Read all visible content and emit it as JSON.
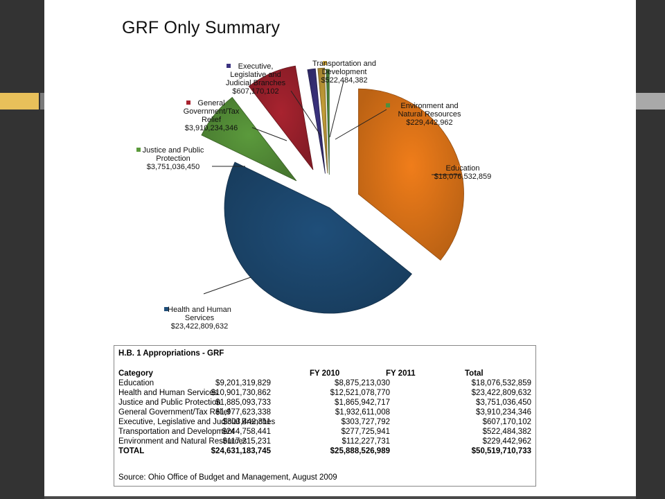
{
  "slide": {
    "title": "GRF Only Summary"
  },
  "chart_data": {
    "type": "pie",
    "title": "GRF Only Summary",
    "slices": [
      {
        "label": "Education",
        "value": 18076532859,
        "value_label": "$18,076,532,859",
        "color": "#f07d1a"
      },
      {
        "label": "Health and Human Services",
        "value": 23422809632,
        "value_label": "$23,422,809,632",
        "color": "#1f4e79"
      },
      {
        "label": "Justice and Public Protection",
        "value": 3751036450,
        "value_label": "$3,751,036,450",
        "color": "#5b9a3c"
      },
      {
        "label": "General Government/Tax Relief",
        "value": 3910234346,
        "value_label": "$3,910,234,346",
        "color": "#a8232f"
      },
      {
        "label": "Executive, Legislative and Judicial Branches",
        "value": 607170102,
        "value_label": "$607,170,102",
        "color": "#3b3380"
      },
      {
        "label": "Transportation and Development",
        "value": 522484382,
        "value_label": "$522,484,382",
        "color": "#c9a23a"
      },
      {
        "label": "Environment and Natural Resources",
        "value": 229442962,
        "value_label": "$229,442,962",
        "color": "#4f8f3e"
      }
    ],
    "label_lines": {
      "Education": [
        "Education",
        "$18,076,532,859"
      ],
      "Health and Human Services": [
        "Health and Human",
        "Services",
        "$23,422,809,632"
      ],
      "Justice and Public Protection": [
        "Justice and Public",
        "Protection",
        "$3,751,036,450"
      ],
      "General Government/Tax Relief": [
        "General",
        "Government/Tax",
        "Relief",
        "$3,910,234,346"
      ],
      "Executive, Legislative and Judicial Branches": [
        "Executive,",
        "Legislative and",
        "Judicial Branches",
        "$607,170,102"
      ],
      "Transportation and Development": [
        "Transportation and",
        "Development",
        "$522,484,382"
      ],
      "Environment and Natural Resources": [
        "Environment and",
        "Natural Resources",
        "$229,442,962"
      ]
    }
  },
  "table": {
    "title": "H.B. 1 Appropriations - GRF",
    "headers": [
      "Category",
      "FY 2010",
      "FY 2011",
      "Total"
    ],
    "rows": [
      [
        "Education",
        "$9,201,319,829",
        "$8,875,213,030",
        "$18,076,532,859"
      ],
      [
        "Health and Human Services",
        "$10,901,730,862",
        "$12,521,078,770",
        "$23,422,809,632"
      ],
      [
        "Justice and Public Protection",
        "$1,885,093,733",
        "$1,865,942,717",
        "$3,751,036,450"
      ],
      [
        "General Government/Tax Relief",
        "$1,977,623,338",
        "$1,932,611,008",
        "$3,910,234,346"
      ],
      [
        "Executive, Legislative and Judicial Branches",
        "$303,442,311",
        "$303,727,792",
        "$607,170,102"
      ],
      [
        "Transportation and Development",
        "$244,758,441",
        "$277,725,941",
        "$522,484,382"
      ],
      [
        "Environment and Natural Resources",
        "$117,215,231",
        "$112,227,731",
        "$229,442,962"
      ]
    ],
    "total": [
      "TOTAL",
      "$24,631,183,745",
      "$25,888,526,989",
      "$50,519,710,733"
    ],
    "source": "Source: Ohio Office of Budget and Management, August 2009"
  }
}
